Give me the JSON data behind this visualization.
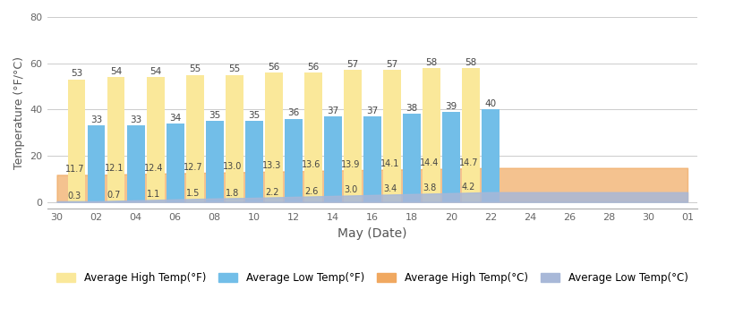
{
  "high_f": [
    53,
    54,
    54,
    55,
    55,
    56,
    56,
    57,
    57,
    58,
    58
  ],
  "low_f": [
    33,
    33,
    34,
    35,
    35,
    36,
    37,
    37,
    38,
    39,
    40
  ],
  "high_c": [
    11.7,
    12.1,
    12.4,
    12.7,
    13.0,
    13.3,
    13.6,
    13.9,
    14.1,
    14.4,
    14.7
  ],
  "low_c": [
    0.3,
    0.7,
    1.1,
    1.5,
    1.8,
    2.2,
    2.6,
    3.0,
    3.4,
    3.8,
    4.2
  ],
  "bar_x": [
    1,
    3,
    5,
    7,
    9,
    11,
    13,
    15,
    17,
    19,
    21
  ],
  "low_f_x": [
    2,
    4,
    6,
    8,
    10,
    12,
    14,
    16,
    18,
    20,
    22
  ],
  "x_tick_positions": [
    0,
    2,
    4,
    6,
    8,
    10,
    12,
    14,
    16,
    18,
    20,
    22,
    24,
    26,
    28,
    30,
    32
  ],
  "x_tick_labels": [
    "30",
    "02",
    "04",
    "06",
    "08",
    "10",
    "12",
    "14",
    "16",
    "18",
    "20",
    "22",
    "24",
    "26",
    "28",
    "30",
    "01"
  ],
  "area_x": [
    0,
    2,
    4,
    6,
    8,
    10,
    12,
    14,
    16,
    18,
    20,
    22
  ],
  "area_high_c": [
    0,
    11.7,
    12.1,
    12.4,
    12.7,
    13.0,
    13.3,
    13.6,
    13.9,
    14.1,
    14.4,
    14.7
  ],
  "area_low_c": [
    0,
    0.3,
    0.7,
    1.1,
    1.5,
    1.8,
    2.2,
    2.6,
    3.0,
    3.4,
    3.8,
    4.2
  ],
  "color_high_f": "#FAE89A",
  "color_low_f": "#72BEE8",
  "color_high_c": "#F0A860",
  "color_low_c": "#A8B8D8",
  "xlabel": "May (Date)",
  "ylabel": "Temperature (°F/°C)",
  "ylim": [
    -3,
    80
  ],
  "yticks": [
    0,
    20,
    40,
    60,
    80
  ],
  "background_color": "#ffffff",
  "bar_width": 0.9
}
